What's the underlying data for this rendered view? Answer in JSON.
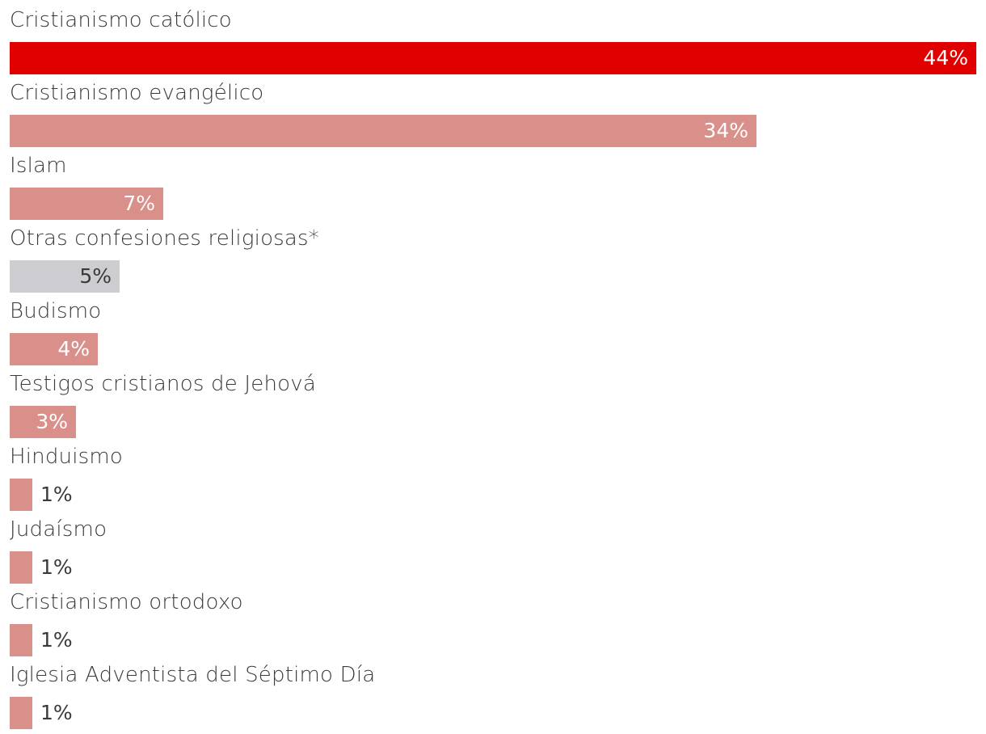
{
  "chart_data": {
    "type": "bar",
    "orientation": "horizontal",
    "categories": [
      "Cristianismo católico",
      "Cristianismo evangélico",
      "Islam",
      "Otras confesiones religiosas*",
      "Budismo",
      "Testigos cristianos de Jehová",
      "Hinduismo",
      "Judaísmo",
      "Cristianismo ortodoxo",
      "Iglesia Adventista del Séptimo Día"
    ],
    "values": [
      44,
      34,
      7,
      5,
      4,
      3,
      1,
      1,
      1,
      1
    ],
    "value_labels": [
      "44%",
      "34%",
      "7%",
      "5%",
      "4%",
      "3%",
      "1%",
      "1%",
      "1%",
      "1%"
    ],
    "colors": [
      "#e00000",
      "#d98f8a",
      "#d98f8a",
      "#cdccd0",
      "#d98f8a",
      "#d98f8a",
      "#d98f8a",
      "#d98f8a",
      "#d98f8a",
      "#d98f8a"
    ],
    "label_colors": [
      "#ffffff",
      "#ffffff",
      "#ffffff",
      "#3a3a3a",
      "#ffffff",
      "#ffffff",
      "#3a3a3a",
      "#3a3a3a",
      "#3a3a3a",
      "#3a3a3a"
    ],
    "xlim": [
      0,
      44
    ],
    "grid": false,
    "legend": "none"
  }
}
